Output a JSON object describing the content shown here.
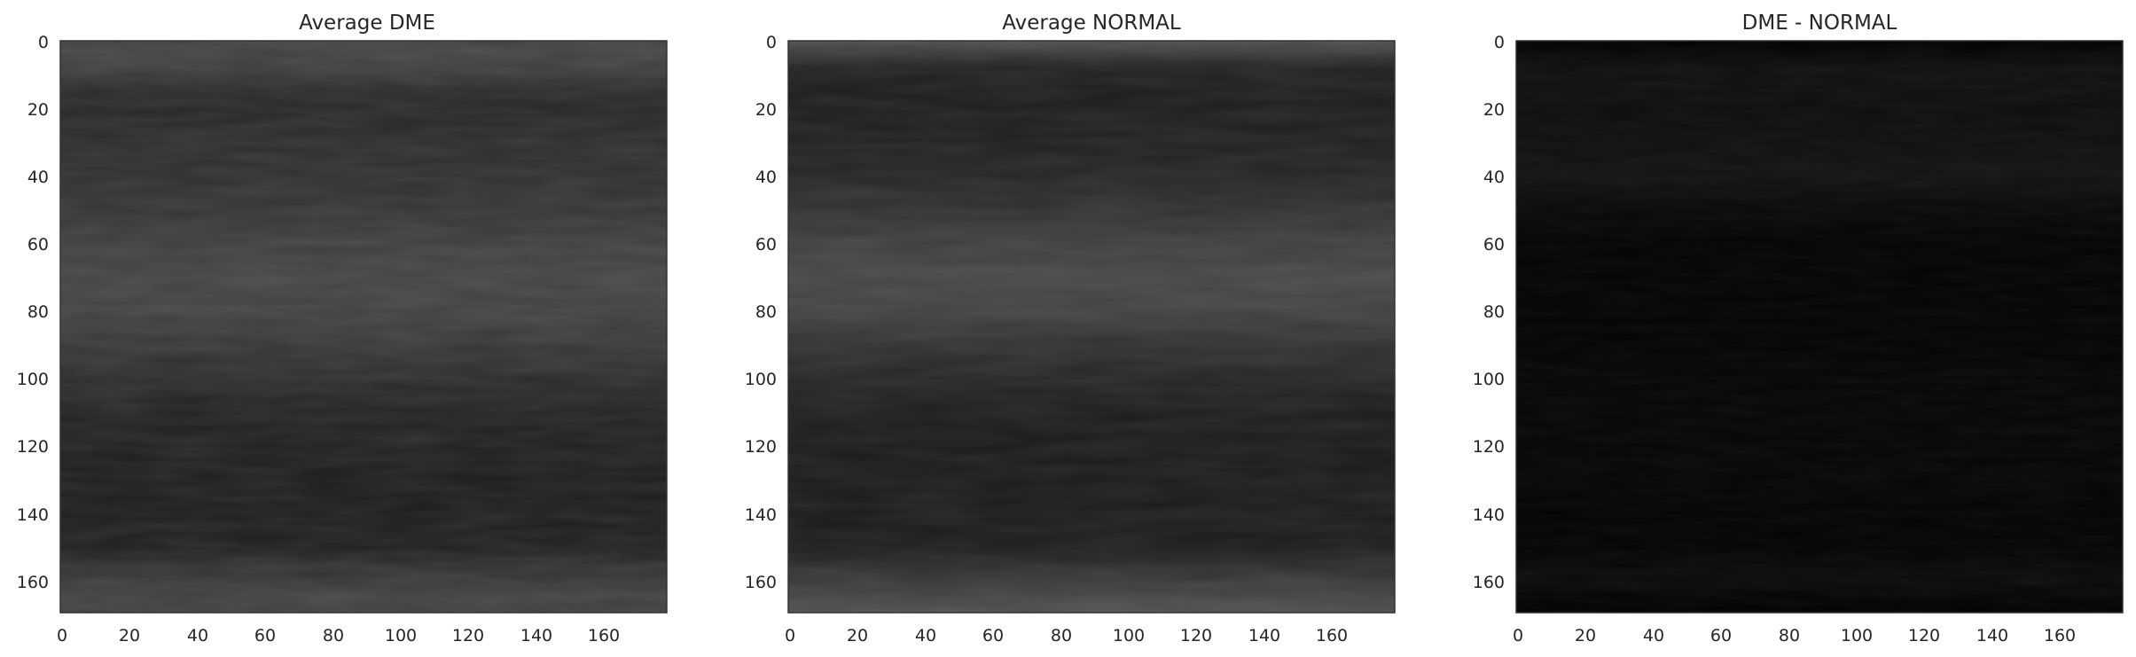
{
  "chart_data": [
    {
      "type": "heatmap",
      "title": "Average DME",
      "colormap": "gray",
      "extent": {
        "x": [
          0,
          179
        ],
        "y": [
          0,
          169
        ]
      },
      "xticks": [
        "0",
        "20",
        "40",
        "60",
        "80",
        "100",
        "120",
        "140",
        "160"
      ],
      "yticks": [
        "0",
        "20",
        "40",
        "60",
        "80",
        "100",
        "120",
        "140",
        "160"
      ],
      "yaxis_inverted": true,
      "intensity_profile": {
        "rows": [
          0,
          3,
          8,
          14,
          20,
          30,
          40,
          50,
          60,
          70,
          80,
          90,
          100,
          110,
          120,
          130,
          140,
          150,
          155,
          160,
          165,
          169
        ],
        "values": [
          0.24,
          0.26,
          0.24,
          0.17,
          0.15,
          0.17,
          0.18,
          0.2,
          0.24,
          0.26,
          0.25,
          0.21,
          0.17,
          0.13,
          0.12,
          0.11,
          0.11,
          0.12,
          0.18,
          0.22,
          0.25,
          0.24
        ]
      }
    },
    {
      "type": "heatmap",
      "title": "Average NORMAL",
      "colormap": "gray",
      "extent": {
        "x": [
          0,
          179
        ],
        "y": [
          0,
          169
        ]
      },
      "xticks": [
        "0",
        "20",
        "40",
        "60",
        "80",
        "100",
        "120",
        "140",
        "160"
      ],
      "yticks": [
        "0",
        "20",
        "40",
        "60",
        "80",
        "100",
        "120",
        "140",
        "160"
      ],
      "yaxis_inverted": true,
      "intensity_profile": {
        "rows": [
          0,
          3,
          8,
          14,
          20,
          30,
          40,
          50,
          60,
          70,
          80,
          90,
          100,
          110,
          120,
          130,
          140,
          150,
          155,
          160,
          165,
          169
        ],
        "values": [
          0.3,
          0.24,
          0.13,
          0.11,
          0.11,
          0.12,
          0.14,
          0.19,
          0.24,
          0.27,
          0.25,
          0.19,
          0.14,
          0.11,
          0.1,
          0.1,
          0.1,
          0.11,
          0.17,
          0.22,
          0.27,
          0.3
        ]
      }
    },
    {
      "type": "heatmap",
      "title": "DME - NORMAL",
      "colormap": "gray",
      "extent": {
        "x": [
          0,
          179
        ],
        "y": [
          0,
          169
        ]
      },
      "xticks": [
        "0",
        "20",
        "40",
        "60",
        "80",
        "100",
        "120",
        "140",
        "160"
      ],
      "yticks": [
        "0",
        "20",
        "40",
        "60",
        "80",
        "100",
        "120",
        "140",
        "160"
      ],
      "yaxis_inverted": true,
      "intensity_profile": {
        "rows": [
          0,
          3,
          8,
          14,
          20,
          30,
          40,
          50,
          60,
          70,
          80,
          90,
          100,
          110,
          120,
          130,
          140,
          150,
          155,
          160,
          165,
          169
        ],
        "values": [
          0.0,
          0.02,
          0.06,
          0.06,
          0.05,
          0.06,
          0.07,
          0.03,
          0.01,
          0.01,
          0.01,
          0.01,
          0.02,
          0.02,
          0.02,
          0.02,
          0.01,
          0.01,
          0.03,
          0.04,
          0.01,
          0.0
        ]
      }
    }
  ]
}
